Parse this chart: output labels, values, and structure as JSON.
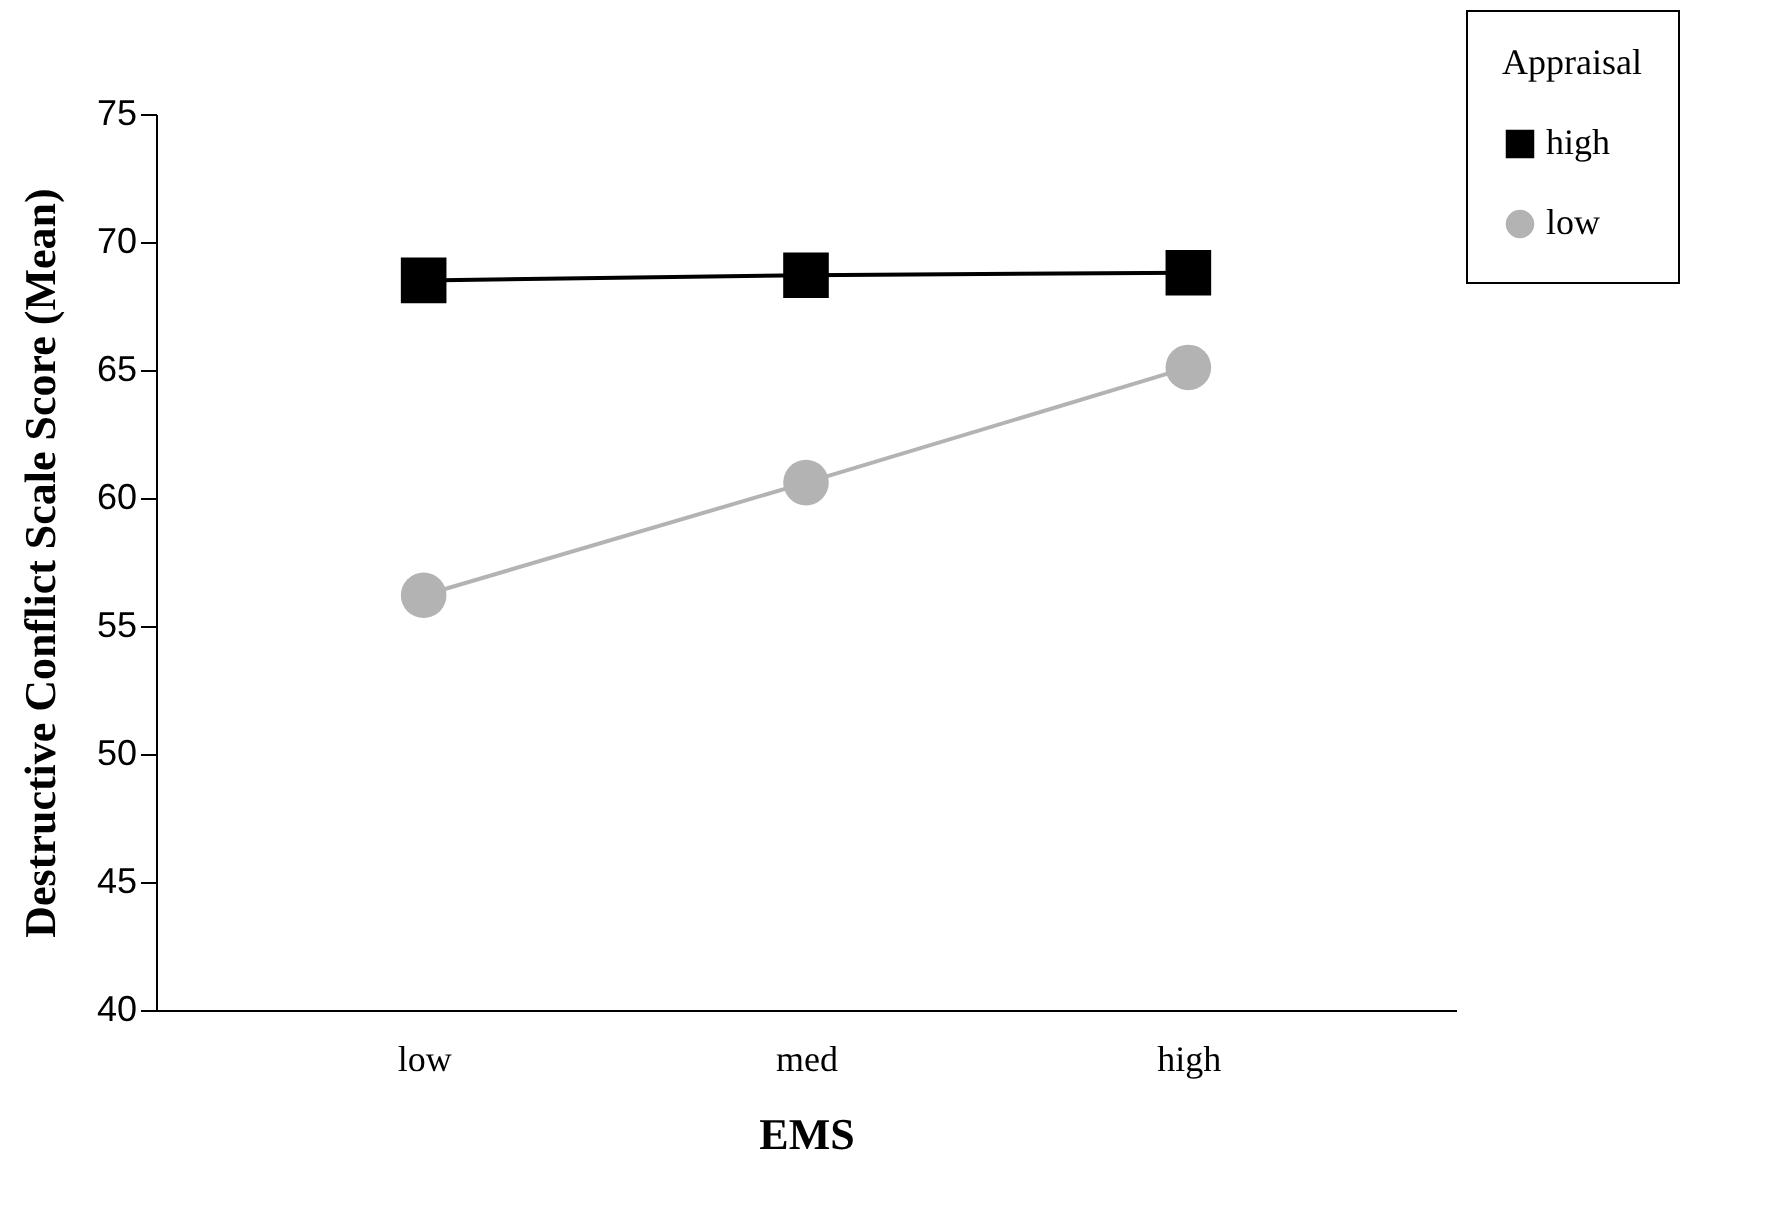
{
  "chart_data": {
    "type": "line",
    "xlabel": "EMS",
    "ylabel": "Destructive Conflict Scale Score (Mean)",
    "legend_title": "Appraisal",
    "categories": [
      "low",
      "med",
      "high"
    ],
    "series": [
      {
        "name": "high",
        "color": "#000000",
        "marker": "square",
        "values": [
          68.5,
          68.7,
          68.8
        ]
      },
      {
        "name": "low",
        "color": "#b3b3b3",
        "marker": "circle",
        "values": [
          56.2,
          60.6,
          65.1
        ]
      }
    ],
    "ylim": [
      40,
      75
    ],
    "yticks": [
      40,
      45,
      50,
      55,
      60,
      65,
      70,
      75
    ],
    "grid": false,
    "legend": "top right",
    "line_style": "solid"
  }
}
